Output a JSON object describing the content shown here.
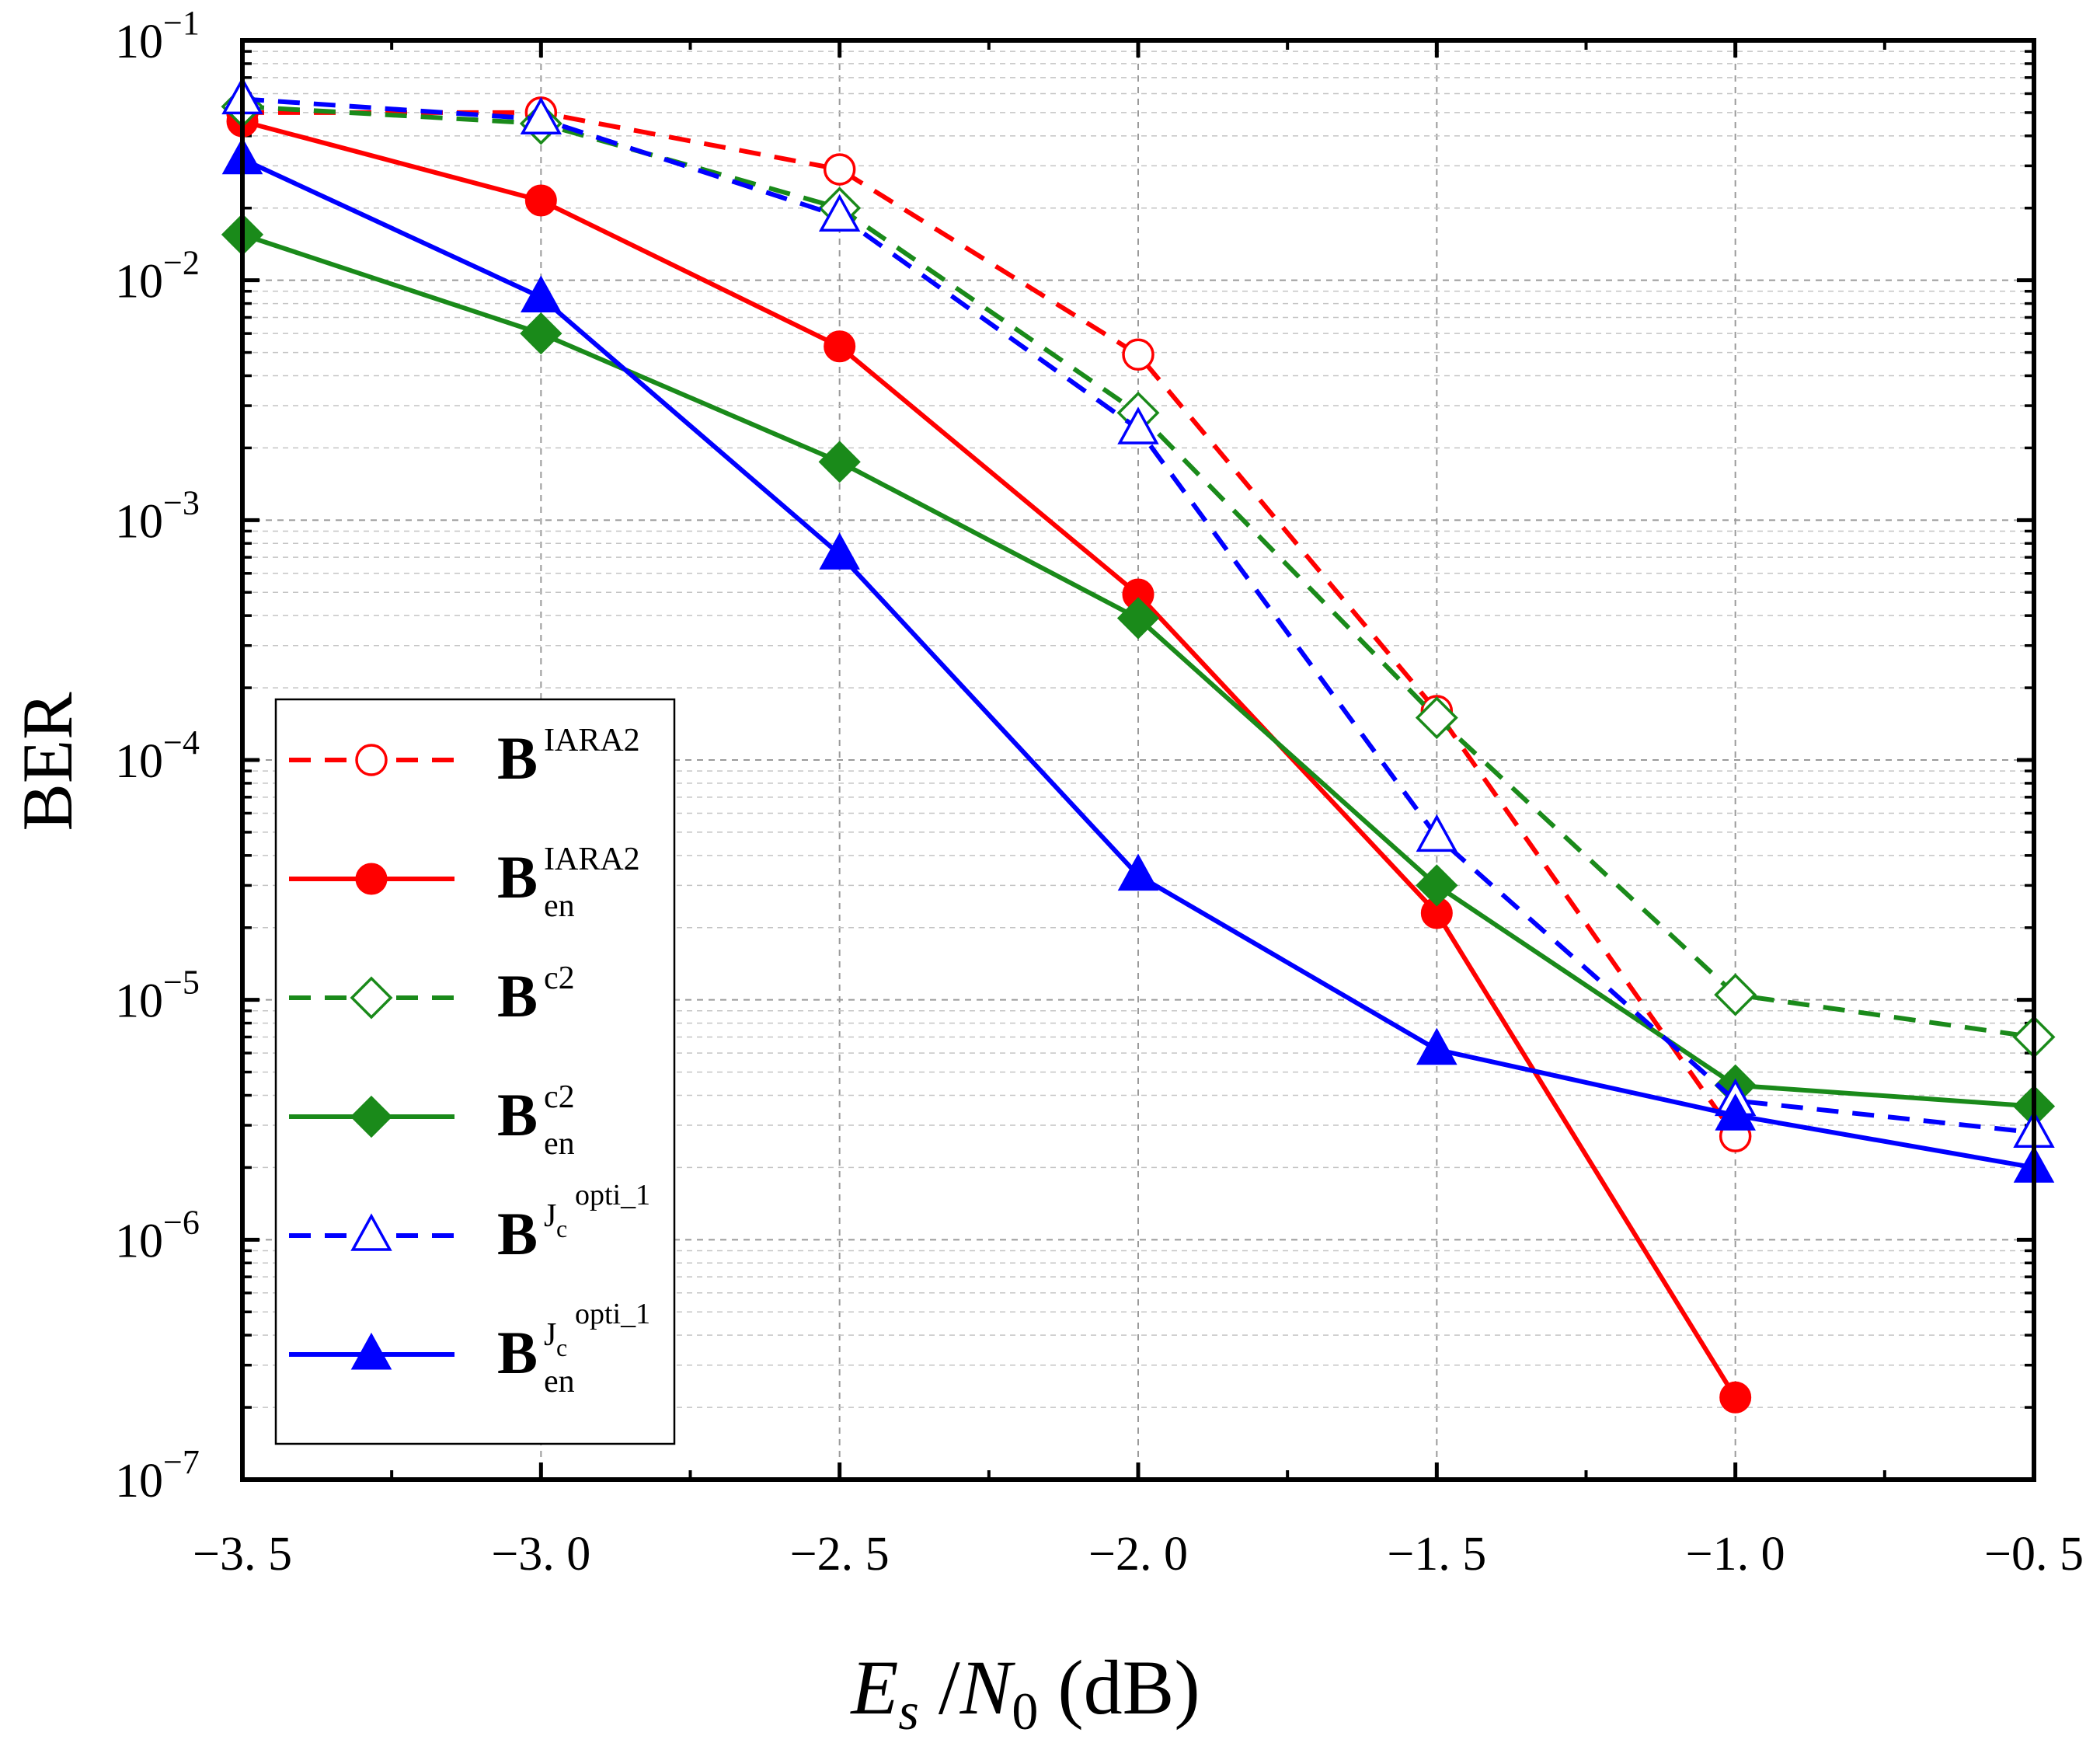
{
  "chart_data": {
    "type": "line",
    "title": "",
    "xlabel": {
      "main": "E",
      "sub": "s",
      "slash": "/",
      "main2": "N",
      "sub2": "0",
      "unit": "(dB)"
    },
    "ylabel": "BER",
    "xlim": [
      -3.5,
      -0.5
    ],
    "ylim": [
      1e-07,
      0.1
    ],
    "yscale": "log",
    "grid": true,
    "legend_position": "bottom-left",
    "x_ticks": [
      "−3. 5",
      "−3. 0",
      "−2. 5",
      "−2. 0",
      "−1. 5",
      "−1. 0",
      "−0. 5"
    ],
    "y_ticks": [
      {
        "base": "10",
        "exp": "−1"
      },
      {
        "base": "10",
        "exp": "−2"
      },
      {
        "base": "10",
        "exp": "−3"
      },
      {
        "base": "10",
        "exp": "−4"
      },
      {
        "base": "10",
        "exp": "−5"
      },
      {
        "base": "10",
        "exp": "−6"
      },
      {
        "base": "10",
        "exp": "−7"
      }
    ],
    "series": [
      {
        "legend": {
          "base": "B",
          "sup": "IARA2",
          "sub": ""
        },
        "color": "#ff0000",
        "dash": true,
        "marker": "circle",
        "filled": false,
        "x": [
          -3.5,
          -3.0,
          -2.5,
          -2.0,
          -1.5,
          -1.0
        ],
        "y": [
          0.05,
          0.05,
          0.029,
          0.0049,
          0.00016,
          2.7e-06
        ]
      },
      {
        "legend": {
          "base": "B",
          "sup": "IARA2",
          "sub": "en"
        },
        "color": "#ff0000",
        "dash": false,
        "marker": "circle",
        "filled": true,
        "x": [
          -3.5,
          -3.0,
          -2.5,
          -2.0,
          -1.5,
          -1.0
        ],
        "y": [
          0.046,
          0.0215,
          0.0053,
          0.00049,
          2.3e-05,
          2.2e-07
        ]
      },
      {
        "legend": {
          "base": "B",
          "sup": "c2",
          "sub": ""
        },
        "color": "#1a8a1a",
        "dash": true,
        "marker": "diamond",
        "filled": false,
        "x": [
          -3.5,
          -3.0,
          -2.5,
          -2.0,
          -1.5,
          -1.0,
          -0.5
        ],
        "y": [
          0.053,
          0.045,
          0.02,
          0.0028,
          0.00015,
          1.05e-05,
          7e-06
        ]
      },
      {
        "legend": {
          "base": "B",
          "sup": "c2",
          "sub": "en"
        },
        "color": "#1a8a1a",
        "dash": false,
        "marker": "diamond",
        "filled": true,
        "x": [
          -3.5,
          -3.0,
          -2.5,
          -2.0,
          -1.5,
          -1.0,
          -0.5
        ],
        "y": [
          0.0155,
          0.006,
          0.00175,
          0.00039,
          3e-05,
          4.4e-06,
          3.6e-06
        ]
      },
      {
        "legend": {
          "base": "B",
          "sup": "J",
          "supsub": "c",
          "supsup": "opti_1",
          "sub": ""
        },
        "color": "#0000ff",
        "dash": true,
        "marker": "triangle",
        "filled": false,
        "x": [
          -3.5,
          -3.0,
          -2.5,
          -2.0,
          -1.5,
          -1.0,
          -0.5
        ],
        "y": [
          0.057,
          0.047,
          0.0185,
          0.0024,
          4.8e-05,
          3.8e-06,
          2.8e-06
        ]
      },
      {
        "legend": {
          "base": "B",
          "sup": "J",
          "supsub": "c",
          "supsup": "opti_1",
          "sub": "en"
        },
        "color": "#0000ff",
        "dash": false,
        "marker": "triangle",
        "filled": true,
        "x": [
          -3.5,
          -3.0,
          -2.5,
          -2.0,
          -1.5,
          -1.0,
          -0.5
        ],
        "y": [
          0.032,
          0.0085,
          0.00072,
          3.3e-05,
          6.2e-06,
          3.3e-06,
          2e-06
        ]
      }
    ]
  }
}
